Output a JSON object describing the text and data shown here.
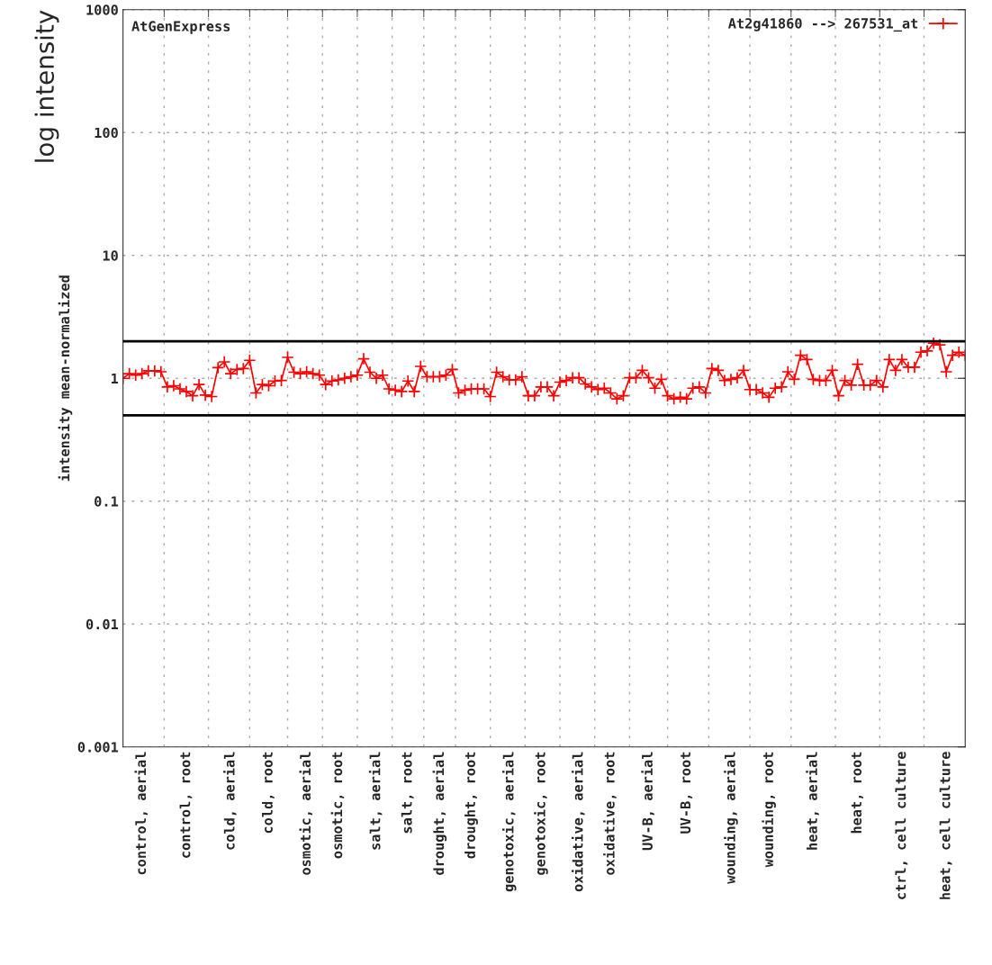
{
  "chart_data": {
    "type": "line",
    "ylabel": "intensity mean-normalized",
    "annotations": [
      "AtGenExpress",
      "log intensity"
    ],
    "log": "y",
    "grid": true,
    "legend": "top right",
    "marker": "cross",
    "line_style": "solid",
    "ylim": [
      0.001,
      1000
    ],
    "yticks": [
      0.001,
      0.01,
      0.1,
      1,
      10,
      100,
      1000
    ],
    "categories": [
      null,
      null,
      null,
      "control, aerial",
      null,
      null,
      null,
      null,
      null,
      null,
      "control, root",
      null,
      null,
      null,
      null,
      null,
      null,
      "cold, aerial",
      null,
      null,
      null,
      null,
      null,
      "cold, root",
      null,
      null,
      null,
      null,
      null,
      "osmotic, aerial",
      null,
      null,
      null,
      null,
      "osmotic, root",
      null,
      null,
      null,
      null,
      null,
      "salt, aerial",
      null,
      null,
      null,
      null,
      "salt, root",
      null,
      null,
      null,
      null,
      "drought, aerial",
      null,
      null,
      null,
      null,
      "drought, root",
      null,
      null,
      null,
      null,
      null,
      "genotoxic, aerial",
      null,
      null,
      null,
      null,
      "genotoxic, root",
      null,
      null,
      null,
      null,
      null,
      "oxidative, aerial",
      null,
      null,
      null,
      null,
      "oxidative, root",
      null,
      null,
      null,
      null,
      null,
      "UV-B, aerial",
      null,
      null,
      null,
      null,
      null,
      "UV-B, root",
      null,
      null,
      null,
      null,
      null,
      null,
      "wounding, aerial",
      null,
      null,
      null,
      null,
      null,
      "wounding, root",
      null,
      null,
      null,
      null,
      null,
      null,
      "heat, aerial",
      null,
      null,
      null,
      null,
      null,
      null,
      "heat, root",
      null,
      null,
      null,
      null,
      null,
      null,
      "ctrl, cell culture",
      null,
      null,
      null,
      null,
      null,
      null,
      "heat, cell culture",
      null,
      null,
      null
    ],
    "ref_lines": [
      {
        "axis": "y",
        "value": 2,
        "color": "#000000",
        "line_style": "solid"
      },
      {
        "axis": "y",
        "value": 0.5,
        "color": "#000000",
        "line_style": "solid"
      }
    ],
    "series": [
      {
        "name": "At2g41860 --> 267531_at",
        "color": "#ff0000",
        "values": [
          1.0,
          1.09,
          1.06,
          1.09,
          1.15,
          1.15,
          1.13,
          0.85,
          0.87,
          0.82,
          0.78,
          0.72,
          0.89,
          0.73,
          0.71,
          1.22,
          1.36,
          1.09,
          1.18,
          1.2,
          1.4,
          0.76,
          0.89,
          0.87,
          0.95,
          0.96,
          1.48,
          1.12,
          1.09,
          1.13,
          1.09,
          1.06,
          0.89,
          0.95,
          0.97,
          1.0,
          1.03,
          1.06,
          1.44,
          1.12,
          1.0,
          1.06,
          0.82,
          0.8,
          0.78,
          0.95,
          0.78,
          1.25,
          1.03,
          1.03,
          1.03,
          1.06,
          1.18,
          0.76,
          0.8,
          0.82,
          0.82,
          0.82,
          0.71,
          1.12,
          1.03,
          0.97,
          0.97,
          1.03,
          0.72,
          0.72,
          0.85,
          0.85,
          0.72,
          0.93,
          0.96,
          1.01,
          1.01,
          0.9,
          0.85,
          0.81,
          0.83,
          0.76,
          0.68,
          0.72,
          1.01,
          1.01,
          1.16,
          1.01,
          0.83,
          0.98,
          0.72,
          0.68,
          0.7,
          0.68,
          0.83,
          0.85,
          0.76,
          1.2,
          1.16,
          0.96,
          0.98,
          1.01,
          1.16,
          0.81,
          0.81,
          0.76,
          0.7,
          0.83,
          0.85,
          1.13,
          0.98,
          1.54,
          1.42,
          0.98,
          0.96,
          0.96,
          1.16,
          0.72,
          0.96,
          0.88,
          1.3,
          0.88,
          0.88,
          0.96,
          0.85,
          1.42,
          1.16,
          1.42,
          1.23,
          1.23,
          1.63,
          1.67,
          1.93,
          1.87,
          1.13,
          1.54,
          1.63,
          1.54
        ]
      }
    ]
  }
}
